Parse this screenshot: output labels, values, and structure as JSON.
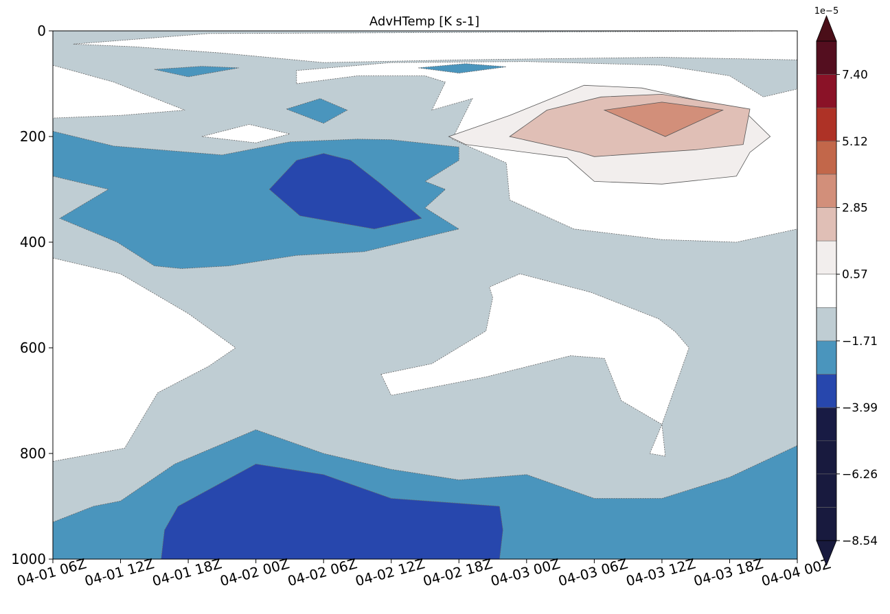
{
  "chart_data": {
    "type": "heatmap",
    "subtype": "filled-contour",
    "title": "AdvHTemp [K s-1]",
    "xlabel": "",
    "ylabel": "",
    "x_ticks": [
      "04-01 06Z",
      "04-01 12Z",
      "04-01 18Z",
      "04-02 00Z",
      "04-02 06Z",
      "04-02 12Z",
      "04-02 18Z",
      "04-03 00Z",
      "04-03 06Z",
      "04-03 12Z",
      "04-03 18Z",
      "04-04 00Z"
    ],
    "y_ticks": [
      0,
      200,
      400,
      600,
      800,
      1000
    ],
    "ylim": [
      1000,
      0
    ],
    "y_inverted": true,
    "colorbar": {
      "multiplier_label": "1e−5",
      "tick_labels": [
        "−8.54",
        "−6.26",
        "−3.99",
        "−1.71",
        "0.57",
        "2.85",
        "5.12",
        "7.40"
      ],
      "tick_values": [
        -8.54,
        -6.26,
        -3.99,
        -1.71,
        0.57,
        2.85,
        5.12,
        7.4
      ],
      "boundaries": [
        -8.54,
        -7.4,
        -6.26,
        -5.12,
        -3.99,
        -2.85,
        -1.71,
        -0.57,
        0.57,
        1.71,
        2.85,
        3.99,
        5.12,
        6.26,
        7.4,
        8.54
      ],
      "level_colors": [
        "#181a3e",
        "#181a3e",
        "#181a3e",
        "#181b44",
        "#2747ad",
        "#4a95bd",
        "#bfcdd3",
        "#ffffff",
        "#f2eeed",
        "#e0bfb6",
        "#d28f7a",
        "#c2674a",
        "#ae3226",
        "#8a1227",
        "#540e1f"
      ],
      "extend": "both",
      "under_color": "#181a3e",
      "over_color": "#4a0e18"
    },
    "regions": [
      {
        "level": "light-blue",
        "color": "#bfcdd3",
        "value_range": [
          -1.71,
          -0.57
        ],
        "polygon": [
          [
            0,
            0
          ],
          [
            11,
            0
          ],
          [
            11,
            1000
          ],
          [
            0,
            1000
          ]
        ]
      },
      {
        "level": "white",
        "color": "#ffffff",
        "value_range": [
          -0.57,
          0.57
        ],
        "polygon": [
          [
            0,
            430
          ],
          [
            1,
            460
          ],
          [
            2,
            535
          ],
          [
            2.7,
            600
          ],
          [
            2.3,
            635
          ],
          [
            1.55,
            685
          ],
          [
            1.06,
            790
          ],
          [
            0,
            815
          ]
        ]
      },
      {
        "level": "white",
        "color": "#ffffff",
        "value_range": [
          -0.57,
          0.57
        ],
        "polygon": [
          [
            4.85,
            650
          ],
          [
            5.6,
            630
          ],
          [
            6.4,
            568
          ],
          [
            6.5,
            505
          ],
          [
            6.45,
            485
          ],
          [
            6.9,
            460
          ],
          [
            7.95,
            495
          ],
          [
            8.95,
            545
          ],
          [
            9.2,
            570
          ],
          [
            9.4,
            600
          ],
          [
            9.0,
            745
          ],
          [
            9.05,
            805
          ],
          [
            8.82,
            800
          ],
          [
            9.0,
            745
          ],
          [
            8.4,
            700
          ],
          [
            8.15,
            620
          ],
          [
            7.65,
            615
          ],
          [
            6.4,
            655
          ],
          [
            5.0,
            690
          ]
        ]
      },
      {
        "level": "white",
        "color": "#ffffff",
        "value_range": [
          -0.57,
          0.57
        ],
        "polygon": [
          [
            0,
            65
          ],
          [
            0.9,
            97
          ],
          [
            1.95,
            150
          ],
          [
            1.0,
            160
          ],
          [
            0,
            165
          ]
        ]
      },
      {
        "level": "white",
        "color": "#ffffff",
        "value_range": [
          -0.57,
          0.57
        ],
        "polygon": [
          [
            3.6,
            100
          ],
          [
            4.5,
            85
          ],
          [
            5.5,
            85
          ],
          [
            5.8,
            97
          ],
          [
            5.6,
            150
          ],
          [
            6.2,
            128
          ],
          [
            5.9,
            205
          ],
          [
            6.7,
            250
          ],
          [
            6.75,
            320
          ],
          [
            7.7,
            375
          ],
          [
            9.0,
            395
          ],
          [
            10.1,
            400
          ],
          [
            11,
            375
          ],
          [
            11,
            110
          ],
          [
            10.5,
            125
          ],
          [
            10.0,
            85
          ],
          [
            9.0,
            65
          ],
          [
            7.0,
            58
          ],
          [
            5.0,
            60
          ],
          [
            3.6,
            75
          ]
        ]
      },
      {
        "level": "white",
        "color": "#ffffff",
        "value_range": [
          -0.57,
          0.57
        ],
        "polygon": [
          [
            2.2,
            200
          ],
          [
            2.9,
            177
          ],
          [
            3.5,
            195
          ],
          [
            3.0,
            212
          ]
        ]
      },
      {
        "level": "white",
        "color": "#ffffff",
        "value_range": [
          -0.57,
          0.57
        ],
        "polygon": [
          [
            2.3,
            5
          ],
          [
            11,
            0
          ],
          [
            11,
            55
          ],
          [
            9,
            50
          ],
          [
            6,
            55
          ],
          [
            4,
            60
          ],
          [
            2.5,
            42
          ],
          [
            1.2,
            30
          ],
          [
            0.3,
            25
          ]
        ]
      },
      {
        "level": "mid-blue",
        "color": "#4a95bd",
        "value_range": [
          -2.85,
          -1.71
        ],
        "polygon": [
          [
            0,
            190
          ],
          [
            0.9,
            218
          ],
          [
            2.5,
            235
          ],
          [
            3.5,
            210
          ],
          [
            4.5,
            205
          ],
          [
            5.0,
            206
          ],
          [
            6.0,
            220
          ],
          [
            6.0,
            245
          ],
          [
            5.5,
            285
          ],
          [
            5.8,
            300
          ],
          [
            5.5,
            335
          ],
          [
            6.0,
            375
          ],
          [
            4.6,
            418
          ],
          [
            3.6,
            425
          ],
          [
            2.6,
            445
          ],
          [
            1.9,
            450
          ],
          [
            1.5,
            445
          ],
          [
            0.95,
            400
          ],
          [
            0.1,
            355
          ],
          [
            0.82,
            300
          ],
          [
            0,
            275
          ]
        ]
      },
      {
        "level": "mid-blue",
        "color": "#4a95bd",
        "value_range": [
          -2.85,
          -1.71
        ],
        "polygon": [
          [
            1.5,
            73
          ],
          [
            2.2,
            67
          ],
          [
            2.75,
            70
          ],
          [
            2.0,
            87
          ]
        ]
      },
      {
        "level": "mid-blue",
        "color": "#4a95bd",
        "value_range": [
          -2.85,
          -1.71
        ],
        "polygon": [
          [
            5.4,
            70
          ],
          [
            6.1,
            62
          ],
          [
            6.7,
            68
          ],
          [
            6.0,
            80
          ]
        ]
      },
      {
        "level": "mid-blue",
        "color": "#4a95bd",
        "value_range": [
          -2.85,
          -1.71
        ],
        "polygon": [
          [
            3.45,
            148
          ],
          [
            3.95,
            128
          ],
          [
            4.35,
            150
          ],
          [
            4.0,
            175
          ]
        ]
      },
      {
        "level": "mid-blue",
        "color": "#4a95bd",
        "value_range": [
          -2.85,
          -1.71
        ],
        "polygon": [
          [
            0,
            930
          ],
          [
            0.6,
            900
          ],
          [
            1.0,
            890
          ],
          [
            1.8,
            820
          ],
          [
            3.0,
            755
          ],
          [
            4.0,
            800
          ],
          [
            5.0,
            830
          ],
          [
            6.0,
            850
          ],
          [
            7.0,
            840
          ],
          [
            8.0,
            885
          ],
          [
            9.0,
            885
          ],
          [
            10.0,
            845
          ],
          [
            11,
            785
          ],
          [
            11,
            1000
          ],
          [
            0,
            1000
          ]
        ]
      },
      {
        "level": "royal-blue",
        "color": "#2747ad",
        "value_range": [
          -3.99,
          -2.85
        ],
        "polygon": [
          [
            3.2,
            300
          ],
          [
            3.6,
            245
          ],
          [
            4.0,
            232
          ],
          [
            4.4,
            245
          ],
          [
            4.85,
            290
          ],
          [
            5.45,
            355
          ],
          [
            4.75,
            375
          ],
          [
            3.65,
            350
          ]
        ]
      },
      {
        "level": "royal-blue",
        "color": "#2747ad",
        "value_range": [
          -3.99,
          -2.85
        ],
        "polygon": [
          [
            1.6,
            1000
          ],
          [
            1.65,
            945
          ],
          [
            1.85,
            900
          ],
          [
            3.0,
            820
          ],
          [
            4.0,
            840
          ],
          [
            5.0,
            885
          ],
          [
            6.6,
            900
          ],
          [
            6.65,
            945
          ],
          [
            6.6,
            1000
          ]
        ]
      },
      {
        "level": "pale-pink",
        "color": "#f2eeed",
        "value_range": [
          0.57,
          1.71
        ],
        "polygon": [
          [
            5.85,
            200
          ],
          [
            6.75,
            160
          ],
          [
            7.85,
            103
          ],
          [
            8.7,
            108
          ],
          [
            10.2,
            150
          ],
          [
            10.6,
            200
          ],
          [
            10.3,
            230
          ],
          [
            10.1,
            275
          ],
          [
            9.0,
            290
          ],
          [
            8.0,
            285
          ],
          [
            7.6,
            240
          ],
          [
            6.1,
            215
          ]
        ]
      },
      {
        "level": "light-pink",
        "color": "#e0bfb6",
        "value_range": [
          1.71,
          2.85
        ],
        "polygon": [
          [
            6.75,
            200
          ],
          [
            7.3,
            150
          ],
          [
            8.1,
            125
          ],
          [
            9.0,
            120
          ],
          [
            10.3,
            148
          ],
          [
            10.2,
            215
          ],
          [
            9.5,
            225
          ],
          [
            8.0,
            238
          ],
          [
            7.8,
            230
          ]
        ]
      },
      {
        "level": "salmon",
        "color": "#d28f7a",
        "value_range": [
          2.85,
          3.99
        ],
        "polygon": [
          [
            8.15,
            150
          ],
          [
            9.0,
            135
          ],
          [
            9.9,
            150
          ],
          [
            9.05,
            200
          ]
        ]
      }
    ]
  }
}
